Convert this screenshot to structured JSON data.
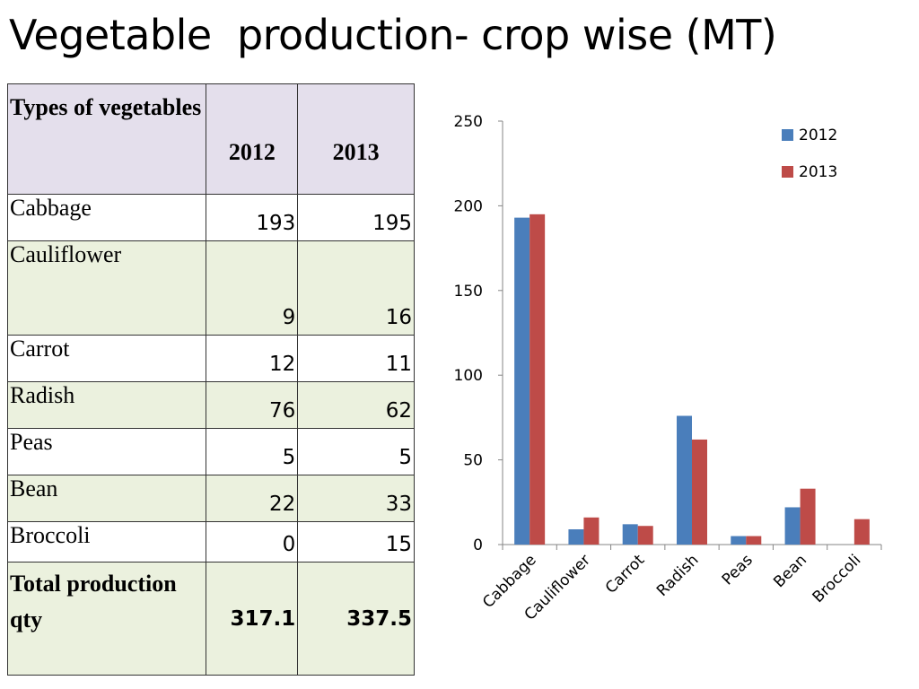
{
  "title": "Vegetable  production- crop wise (MT)",
  "table": {
    "headers": [
      "Types of vegetables",
      "2012",
      "2013"
    ],
    "rows": [
      {
        "name": "Cabbage",
        "v2012": "193",
        "v2013": "195"
      },
      {
        "name": "Cauliflower",
        "v2012": "9",
        "v2013": "16"
      },
      {
        "name": "Carrot",
        "v2012": "12",
        "v2013": "11"
      },
      {
        "name": "Radish",
        "v2012": "76",
        "v2013": "62"
      },
      {
        "name": "Peas",
        "v2012": "5",
        "v2013": "5"
      },
      {
        "name": "Bean",
        "v2012": "22",
        "v2013": "33"
      },
      {
        "name": "Broccoli",
        "v2012": "0",
        "v2013": "15"
      }
    ],
    "total": {
      "name": "Total production qty",
      "v2012": "317.1",
      "v2013": "337.5"
    }
  },
  "chart_data": {
    "type": "bar",
    "categories": [
      "Cabbage",
      "Cauliflower",
      "Carrot",
      "Radish",
      "Peas",
      "Bean",
      "Broccoli"
    ],
    "series": [
      {
        "name": "2012",
        "values": [
          193,
          9,
          12,
          76,
          5,
          22,
          0
        ],
        "color": "#4a7ebb"
      },
      {
        "name": "2013",
        "values": [
          195,
          16,
          11,
          62,
          5,
          33,
          15
        ],
        "color": "#be4b48"
      }
    ],
    "ylim": [
      0,
      250
    ],
    "yticks": [
      0,
      50,
      100,
      150,
      200,
      250
    ],
    "legend": "top-right",
    "grid": false
  }
}
